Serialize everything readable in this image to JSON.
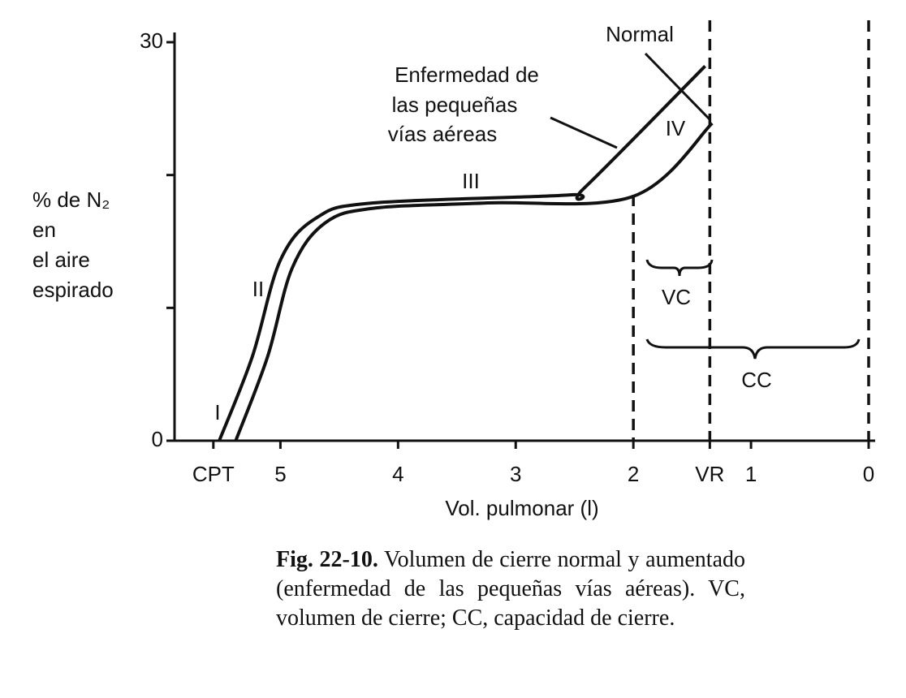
{
  "chart_data": {
    "type": "line",
    "xlabel": "Vol. pulmonar (l)",
    "ylabel_lines": [
      "% de N₂",
      "en",
      "el aire",
      "espirado"
    ],
    "xlim": [
      5.9,
      0
    ],
    "ylim": [
      0,
      30
    ],
    "xticks": [
      {
        "value": 5.57,
        "label": "CPT"
      },
      5,
      4,
      3,
      2,
      {
        "value": 1.35,
        "label": "VR"
      },
      1,
      0
    ],
    "yticks": [
      0,
      30
    ],
    "minor_yticks": [
      10,
      20
    ],
    "series": [
      {
        "name": "Normal",
        "color": "#111111",
        "x": [
          5.38,
          5.11,
          4.9,
          4.62,
          4.21,
          3.24,
          2.0,
          1.33
        ],
        "values": [
          0,
          6.3,
          13.0,
          16.4,
          17.5,
          17.9,
          18.4,
          23.9
        ]
      },
      {
        "name": [
          "Enfermedad de",
          "las pequeñas",
          "vías aéreas"
        ],
        "color": "#111111",
        "x": [
          5.52,
          5.24,
          5.0,
          4.69,
          4.21,
          2.55,
          2.42,
          1.39
        ],
        "values": [
          0,
          6.3,
          13.6,
          16.8,
          17.9,
          18.5,
          19.0,
          28.2
        ]
      }
    ],
    "phase_labels": [
      "I",
      "II",
      "III",
      "IV"
    ],
    "brace_labels": [
      "VC",
      "CC"
    ]
  },
  "caption": {
    "label": "Fig. 22-10.",
    "text": "Volumen de cierre normal y aumentado (enfermedad de las pequeñas vías aéreas). VC, volumen de cierre; CC, capacidad de cierre."
  }
}
